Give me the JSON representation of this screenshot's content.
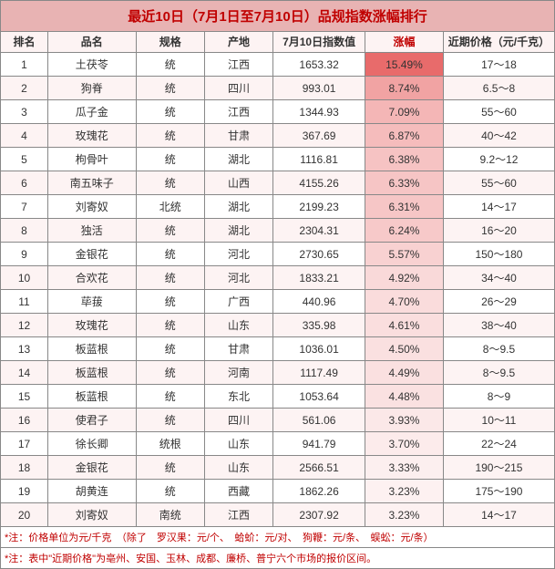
{
  "title": "最近10日（7月1日至7月10日）品规指数涨幅排行",
  "headers": {
    "rank": "排名",
    "name": "品名",
    "spec": "规格",
    "origin": "产地",
    "index": "7月10日指数值",
    "change": "涨幅",
    "price": "近期价格（元/千克）"
  },
  "rows": [
    {
      "rank": "1",
      "name": "土茯苓",
      "spec": "统",
      "origin": "江西",
      "index": "1653.32",
      "change": "15.49%",
      "price": "17～18",
      "pct_bg": "#e86b6b"
    },
    {
      "rank": "2",
      "name": "狗脊",
      "spec": "统",
      "origin": "四川",
      "index": "993.01",
      "change": "8.74%",
      "price": "6.5～8",
      "pct_bg": "#f1a3a3"
    },
    {
      "rank": "3",
      "name": "瓜子金",
      "spec": "统",
      "origin": "江西",
      "index": "1344.93",
      "change": "7.09%",
      "price": "55～60",
      "pct_bg": "#f4b6b6"
    },
    {
      "rank": "4",
      "name": "玫瑰花",
      "spec": "统",
      "origin": "甘肃",
      "index": "367.69",
      "change": "6.87%",
      "price": "40～42",
      "pct_bg": "#f5bcbc"
    },
    {
      "rank": "5",
      "name": "枸骨叶",
      "spec": "统",
      "origin": "湖北",
      "index": "1116.81",
      "change": "6.38%",
      "price": "9.2～12",
      "pct_bg": "#f6c3c3"
    },
    {
      "rank": "6",
      "name": "南五味子",
      "spec": "统",
      "origin": "山西",
      "index": "4155.26",
      "change": "6.33%",
      "price": "55～60",
      "pct_bg": "#f6c5c5"
    },
    {
      "rank": "7",
      "name": "刘寄奴",
      "spec": "北统",
      "origin": "湖北",
      "index": "2199.23",
      "change": "6.31%",
      "price": "14～17",
      "pct_bg": "#f6c6c6"
    },
    {
      "rank": "8",
      "name": "独活",
      "spec": "统",
      "origin": "湖北",
      "index": "2304.31",
      "change": "6.24%",
      "price": "16～20",
      "pct_bg": "#f7c9c9"
    },
    {
      "rank": "9",
      "name": "金银花",
      "spec": "统",
      "origin": "河北",
      "index": "2730.65",
      "change": "5.57%",
      "price": "150～180",
      "pct_bg": "#f8d1d1"
    },
    {
      "rank": "10",
      "name": "合欢花",
      "spec": "统",
      "origin": "河北",
      "index": "1833.21",
      "change": "4.92%",
      "price": "34～40",
      "pct_bg": "#f9d9d9"
    },
    {
      "rank": "11",
      "name": "荜菝",
      "spec": "统",
      "origin": "广西",
      "index": "440.96",
      "change": "4.70%",
      "price": "26～29",
      "pct_bg": "#fadcdc"
    },
    {
      "rank": "12",
      "name": "玫瑰花",
      "spec": "统",
      "origin": "山东",
      "index": "335.98",
      "change": "4.61%",
      "price": "38～40",
      "pct_bg": "#fadede"
    },
    {
      "rank": "13",
      "name": "板蓝根",
      "spec": "统",
      "origin": "甘肃",
      "index": "1036.01",
      "change": "4.50%",
      "price": "8～9.5",
      "pct_bg": "#fae0e0"
    },
    {
      "rank": "14",
      "name": "板蓝根",
      "spec": "统",
      "origin": "河南",
      "index": "1117.49",
      "change": "4.49%",
      "price": "8～9.5",
      "pct_bg": "#fae0e0"
    },
    {
      "rank": "15",
      "name": "板蓝根",
      "spec": "统",
      "origin": "东北",
      "index": "1053.64",
      "change": "4.48%",
      "price": "8～9",
      "pct_bg": "#fae1e1"
    },
    {
      "rank": "16",
      "name": "使君子",
      "spec": "统",
      "origin": "四川",
      "index": "561.06",
      "change": "3.93%",
      "price": "10～11",
      "pct_bg": "#fbe8e8"
    },
    {
      "rank": "17",
      "name": "徐长卿",
      "spec": "统根",
      "origin": "山东",
      "index": "941.79",
      "change": "3.70%",
      "price": "22～24",
      "pct_bg": "#fcebeb"
    },
    {
      "rank": "18",
      "name": "金银花",
      "spec": "统",
      "origin": "山东",
      "index": "2566.51",
      "change": "3.33%",
      "price": "190～215",
      "pct_bg": "#fcefef"
    },
    {
      "rank": "19",
      "name": "胡黄连",
      "spec": "统",
      "origin": "西藏",
      "index": "1862.26",
      "change": "3.23%",
      "price": "175～190",
      "pct_bg": "#fdf1f1"
    },
    {
      "rank": "20",
      "name": "刘寄奴",
      "spec": "南统",
      "origin": "江西",
      "index": "2307.92",
      "change": "3.23%",
      "price": "14～17",
      "pct_bg": "#fdf1f1"
    }
  ],
  "footnotes": [
    "*注：价格单位为元/千克　（除了　罗汉果：元/个、　蛤蚧：元/对、　狗鞭：元/条、　蜈蚣：元/条）",
    "*注：表中\"近期价格\"为亳州、安国、玉林、成都、廉桥、普宁六个市场的报价区间。"
  ]
}
